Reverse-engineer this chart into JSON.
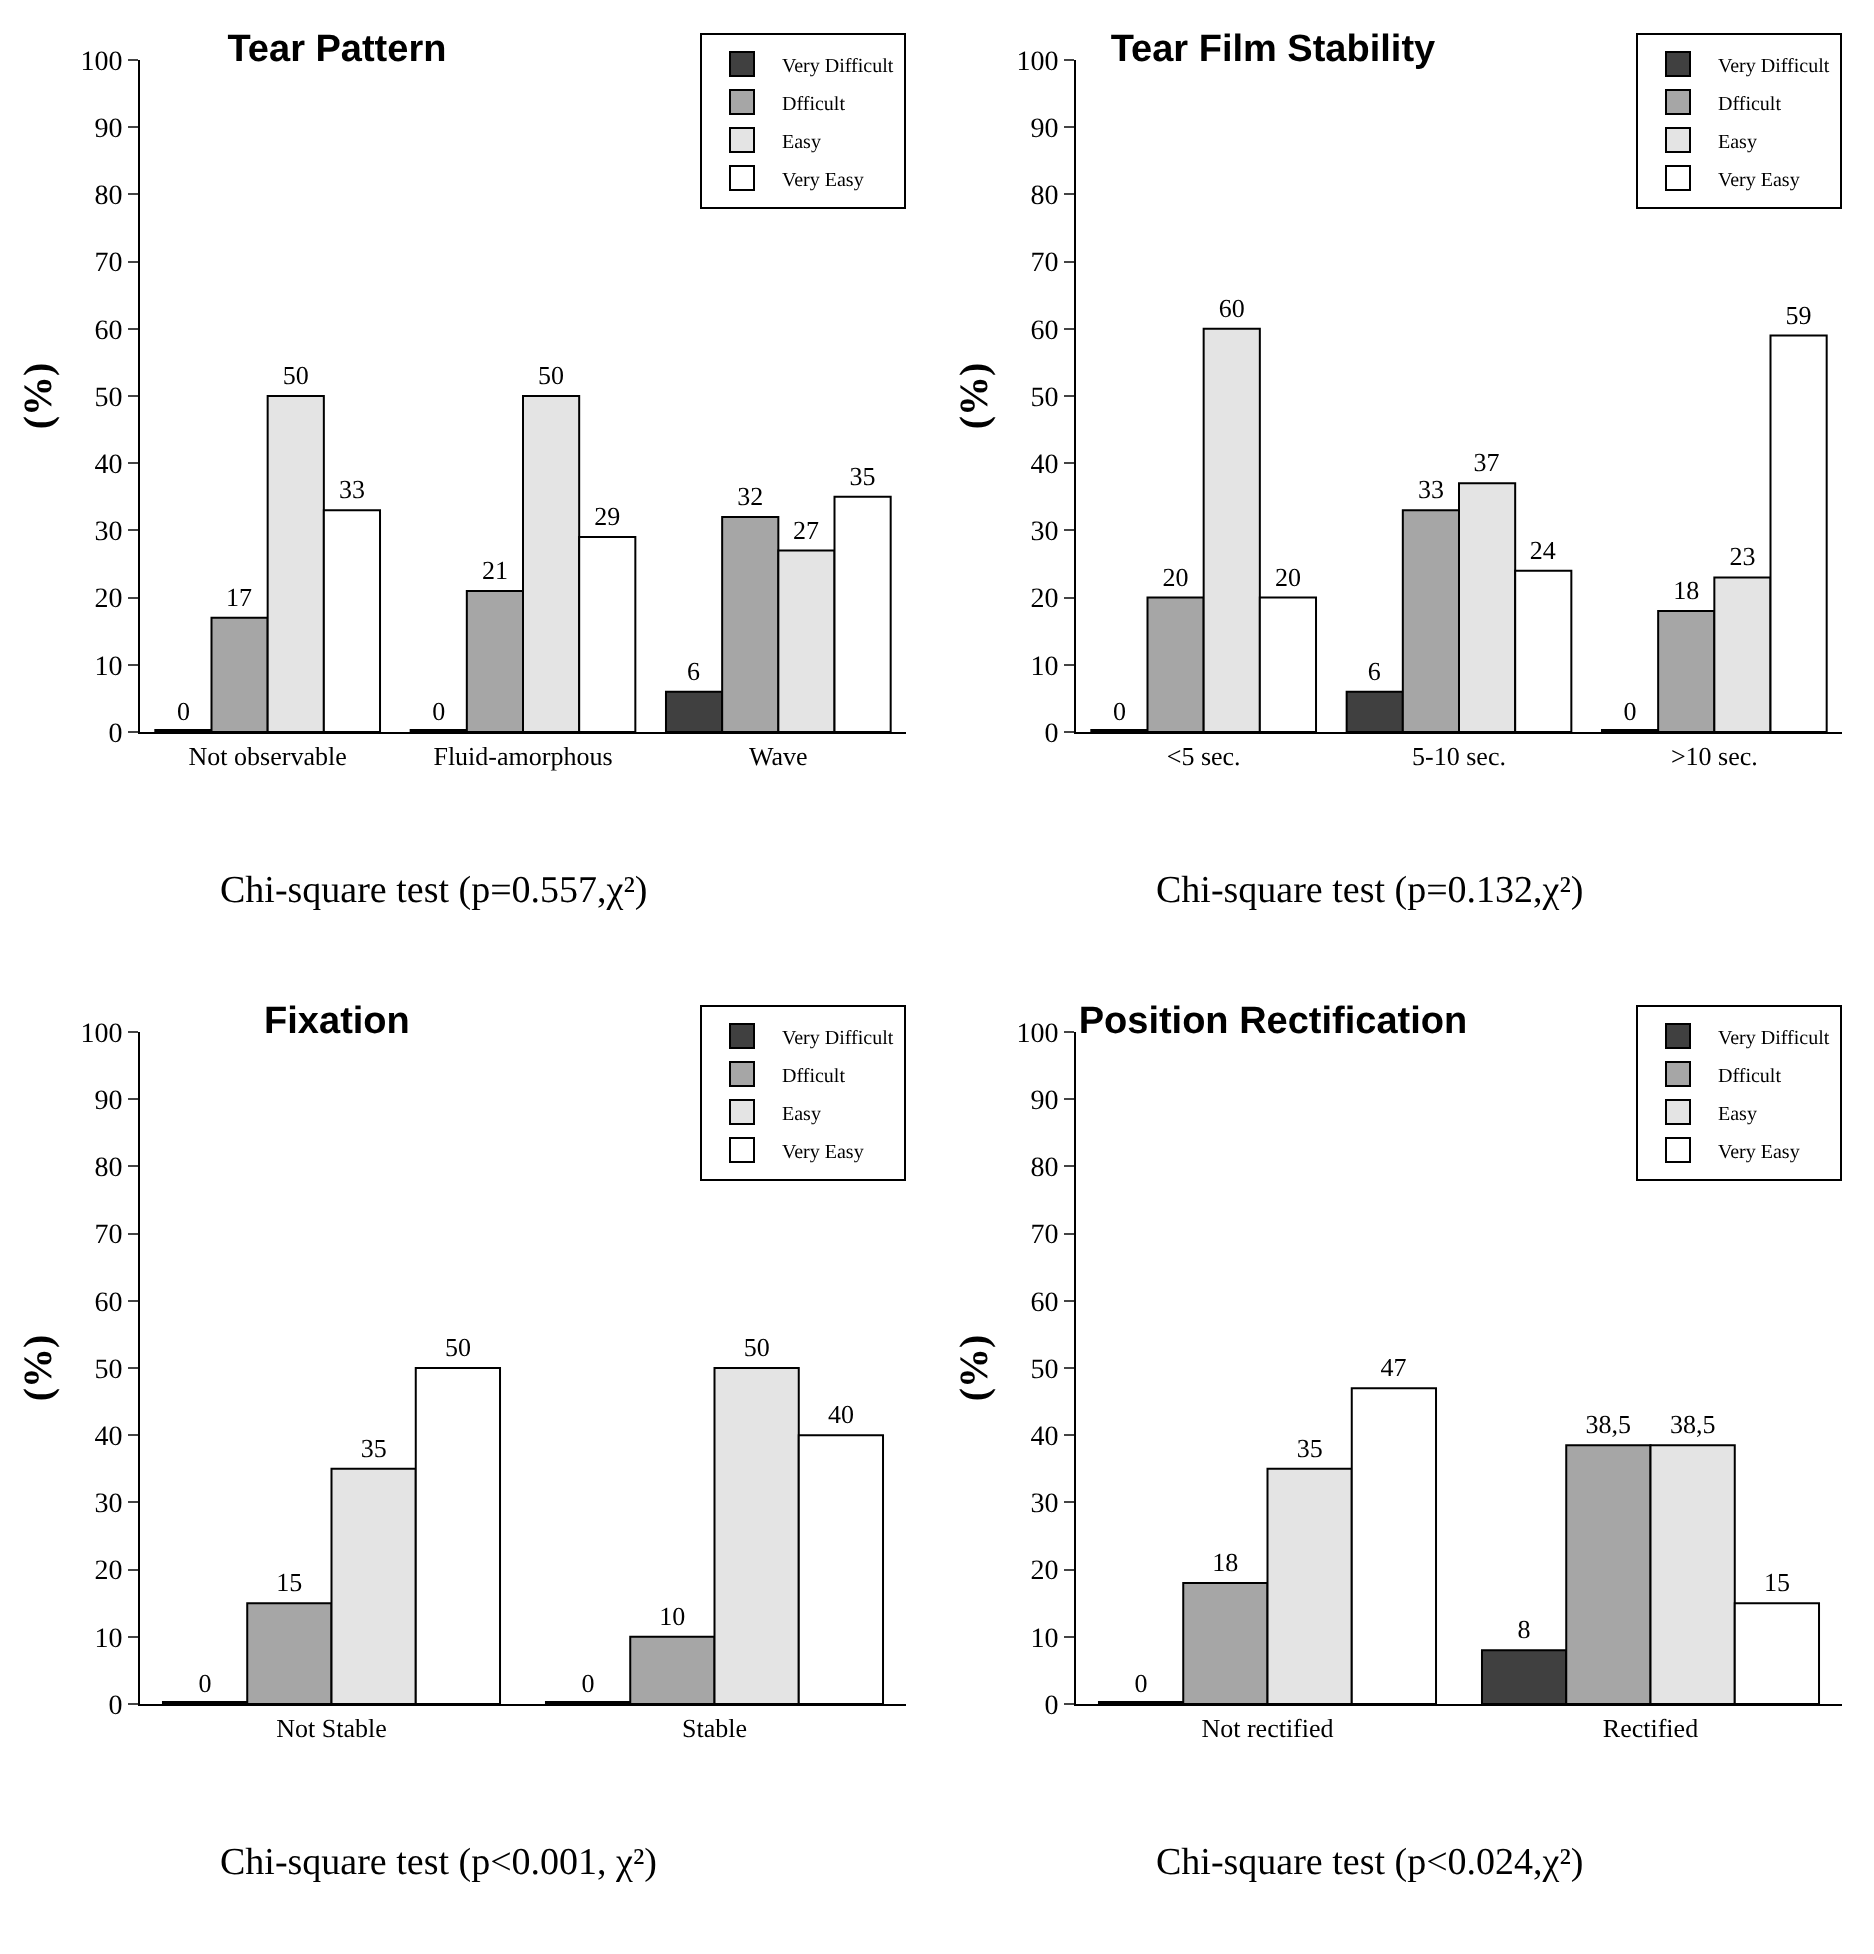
{
  "chart_data": [
    {
      "type": "bar",
      "title": "Tear Pattern",
      "ylabel": "(%)",
      "categories": [
        "Not observable",
        "Fluid-amorphous",
        "Wave"
      ],
      "ylim": [
        0,
        100
      ],
      "yticks": [
        0,
        10,
        20,
        30,
        40,
        50,
        60,
        70,
        80,
        90,
        100
      ],
      "grid": false,
      "legend": "top right",
      "annotations": [
        "Chi-square test (p=0.557,χ²)"
      ],
      "series": [
        {
          "name": "Very Difficult",
          "color": "#404040",
          "values": [
            0,
            0,
            6
          ],
          "value_labels": [
            "0",
            "0",
            "6"
          ]
        },
        {
          "name": "Dfficult",
          "color": "#a6a6a6",
          "values": [
            17,
            21,
            32
          ],
          "value_labels": [
            "17",
            "21",
            "32"
          ]
        },
        {
          "name": "Easy",
          "color": "#e4e4e4",
          "values": [
            50,
            50,
            27
          ],
          "value_labels": [
            "50",
            "50",
            "27"
          ]
        },
        {
          "name": "Very Easy",
          "color": "#ffffff",
          "values": [
            33,
            29,
            35
          ],
          "value_labels": [
            "33",
            "29",
            "35"
          ]
        }
      ]
    },
    {
      "type": "bar",
      "title": "Tear Film Stability",
      "ylabel": "(%)",
      "categories": [
        "<5 sec.",
        "5-10 sec.",
        ">10 sec."
      ],
      "ylim": [
        0,
        100
      ],
      "yticks": [
        0,
        10,
        20,
        30,
        40,
        50,
        60,
        70,
        80,
        90,
        100
      ],
      "grid": false,
      "legend": "top right",
      "annotations": [
        "Chi-square test (p=0.132,χ²)"
      ],
      "series": [
        {
          "name": "Very Difficult",
          "color": "#404040",
          "values": [
            0,
            6,
            0
          ],
          "value_labels": [
            "0",
            "6",
            "0"
          ]
        },
        {
          "name": "Dfficult",
          "color": "#a6a6a6",
          "values": [
            20,
            33,
            18
          ],
          "value_labels": [
            "20",
            "33",
            "18"
          ]
        },
        {
          "name": "Easy",
          "color": "#e4e4e4",
          "values": [
            60,
            37,
            23
          ],
          "value_labels": [
            "60",
            "37",
            "23"
          ]
        },
        {
          "name": "Very Easy",
          "color": "#ffffff",
          "values": [
            20,
            24,
            59
          ],
          "value_labels": [
            "20",
            "24",
            "59"
          ]
        }
      ]
    },
    {
      "type": "bar",
      "title": "Fixation",
      "ylabel": "(%)",
      "categories": [
        "Not Stable",
        "Stable"
      ],
      "ylim": [
        0,
        100
      ],
      "yticks": [
        0,
        10,
        20,
        30,
        40,
        50,
        60,
        70,
        80,
        90,
        100
      ],
      "grid": false,
      "legend": "top right",
      "annotations": [
        "Chi-square test (p<0.001, χ²)"
      ],
      "series": [
        {
          "name": "Very Difficult",
          "color": "#404040",
          "values": [
            0,
            0
          ],
          "value_labels": [
            "0",
            "0"
          ]
        },
        {
          "name": "Dfficult",
          "color": "#a6a6a6",
          "values": [
            15,
            10
          ],
          "value_labels": [
            "15",
            "10"
          ]
        },
        {
          "name": "Easy",
          "color": "#e4e4e4",
          "values": [
            35,
            50
          ],
          "value_labels": [
            "35",
            "50"
          ]
        },
        {
          "name": "Very Easy",
          "color": "#ffffff",
          "values": [
            50,
            40
          ],
          "value_labels": [
            "50",
            "40"
          ]
        }
      ]
    },
    {
      "type": "bar",
      "title": "Position Rectification",
      "ylabel": "(%)",
      "categories": [
        "Not rectified",
        "Rectified"
      ],
      "ylim": [
        0,
        100
      ],
      "yticks": [
        0,
        10,
        20,
        30,
        40,
        50,
        60,
        70,
        80,
        90,
        100
      ],
      "grid": false,
      "legend": "top right",
      "annotations": [
        "Chi-square test (p<0.024,χ²)"
      ],
      "series": [
        {
          "name": "Very Difficult",
          "color": "#404040",
          "values": [
            0,
            8
          ],
          "value_labels": [
            "0",
            "8"
          ]
        },
        {
          "name": "Dfficult",
          "color": "#a6a6a6",
          "values": [
            18,
            38.5
          ],
          "value_labels": [
            "18",
            "38,5"
          ]
        },
        {
          "name": "Easy",
          "color": "#e4e4e4",
          "values": [
            35,
            38.5
          ],
          "value_labels": [
            "35",
            "38,5"
          ]
        },
        {
          "name": "Very Easy",
          "color": "#ffffff",
          "values": [
            47,
            15
          ],
          "value_labels": [
            "47",
            "15"
          ]
        }
      ]
    }
  ]
}
